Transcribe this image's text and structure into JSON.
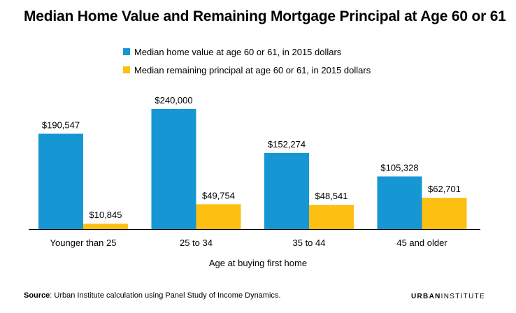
{
  "title": "Median Home Value and Remaining Mortgage Principal at Age 60 or 61",
  "source": {
    "label": "Source",
    "text": ": Urban Institute calculation using Panel Study of Income Dynamics."
  },
  "brand": {
    "part1": "URBAN",
    "part2": "INSTITUTE"
  },
  "colors": {
    "home_value": "#1696d2",
    "principal": "#fdbf11",
    "axis": "#000000"
  },
  "chart_data": {
    "type": "bar",
    "title": "Median Home Value and Remaining Mortgage Principal at Age 60 or 61",
    "xlabel": "Age at buying first home",
    "ylabel": "",
    "categories": [
      "Younger than 25",
      "25 to 34",
      "35 to 44",
      "45 and older"
    ],
    "series": [
      {
        "name": "Median home value at age 60 or 61, in 2015 dollars",
        "values": [
          190547,
          240000,
          152274,
          105328
        ],
        "labels": [
          "$190,547",
          "$240,000",
          "$152,274",
          "$105,328"
        ],
        "color": "#1696d2"
      },
      {
        "name": "Median remaining principal at age 60 or 61, in 2015 dollars",
        "values": [
          10845,
          49754,
          48541,
          62701
        ],
        "labels": [
          "$10,845",
          "$49,754",
          "$48,541",
          "$62,701"
        ],
        "color": "#fdbf11"
      }
    ],
    "ylim": [
      0,
      240000
    ],
    "grid": false,
    "legend_position": "top"
  }
}
